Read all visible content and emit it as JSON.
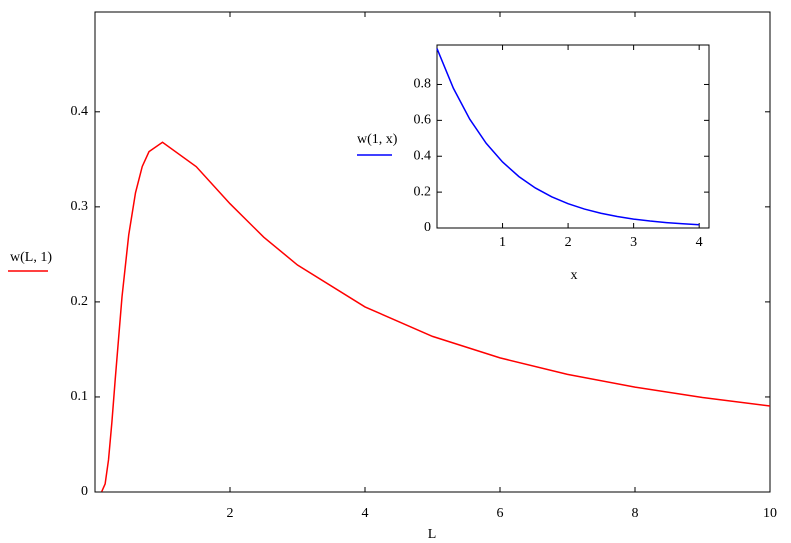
{
  "chart_data": [
    {
      "type": "line",
      "xlabel": "L",
      "series": [
        {
          "name": "w(L, 1)",
          "color": "#ff0000",
          "x": [
            0.1,
            0.15,
            0.2,
            0.25,
            0.3,
            0.4,
            0.5,
            0.6,
            0.7,
            0.8,
            1,
            1.5,
            2,
            2.5,
            3,
            4,
            5,
            6,
            7,
            8,
            9,
            10
          ],
          "values": [
            0.0005,
            0.0085,
            0.0337,
            0.0733,
            0.1189,
            0.2052,
            0.2707,
            0.3148,
            0.3425,
            0.3581,
            0.3679,
            0.3423,
            0.3033,
            0.2681,
            0.2388,
            0.1947,
            0.1637,
            0.1411,
            0.1238,
            0.1103,
            0.0994,
            0.0905
          ]
        }
      ],
      "xlim": [
        0,
        10
      ],
      "ylim": [
        0,
        0.505
      ],
      "xticks": [
        2,
        4,
        6,
        8,
        10
      ],
      "yticks": [
        0,
        0.1,
        0.2,
        0.3,
        0.4
      ]
    },
    {
      "type": "line",
      "xlabel": "x",
      "series": [
        {
          "name": "w(1, x)",
          "color": "#0000ff",
          "x": [
            0,
            0.25,
            0.5,
            0.75,
            1,
            1.25,
            1.5,
            1.75,
            2,
            2.25,
            2.5,
            2.75,
            3,
            3.25,
            3.5,
            3.75,
            4
          ],
          "values": [
            1,
            0.7788,
            0.6065,
            0.4724,
            0.3679,
            0.2865,
            0.2231,
            0.1738,
            0.1353,
            0.1054,
            0.0821,
            0.0639,
            0.0498,
            0.0388,
            0.0302,
            0.0235,
            0.0183
          ]
        }
      ],
      "xlim": [
        0,
        4.15
      ],
      "ylim": [
        0,
        1.02
      ],
      "xticks": [
        1,
        2,
        3,
        4
      ],
      "yticks": [
        0,
        0.2,
        0.4,
        0.6,
        0.8
      ]
    }
  ]
}
